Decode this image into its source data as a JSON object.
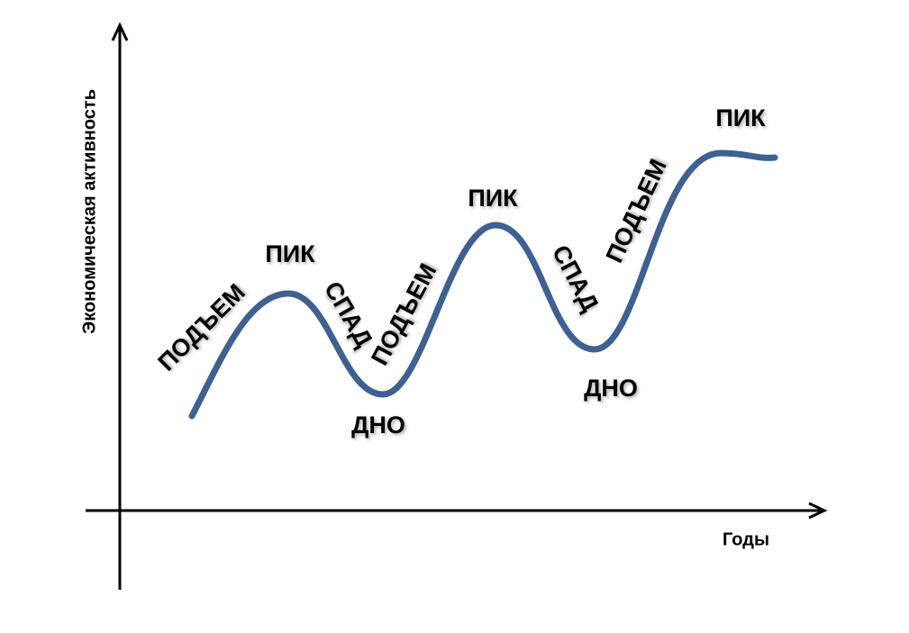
{
  "axes": {
    "y_label": "Экономическая активность",
    "x_label": "Годы"
  },
  "labels": [
    "ПОДЪЕМ",
    "ПИК",
    "СПАД",
    "ПОДЪЕМ",
    "ДНО",
    "ПИК",
    "СПАД",
    "ДНО",
    "ПОДЪЕМ",
    "ПИК"
  ]
}
